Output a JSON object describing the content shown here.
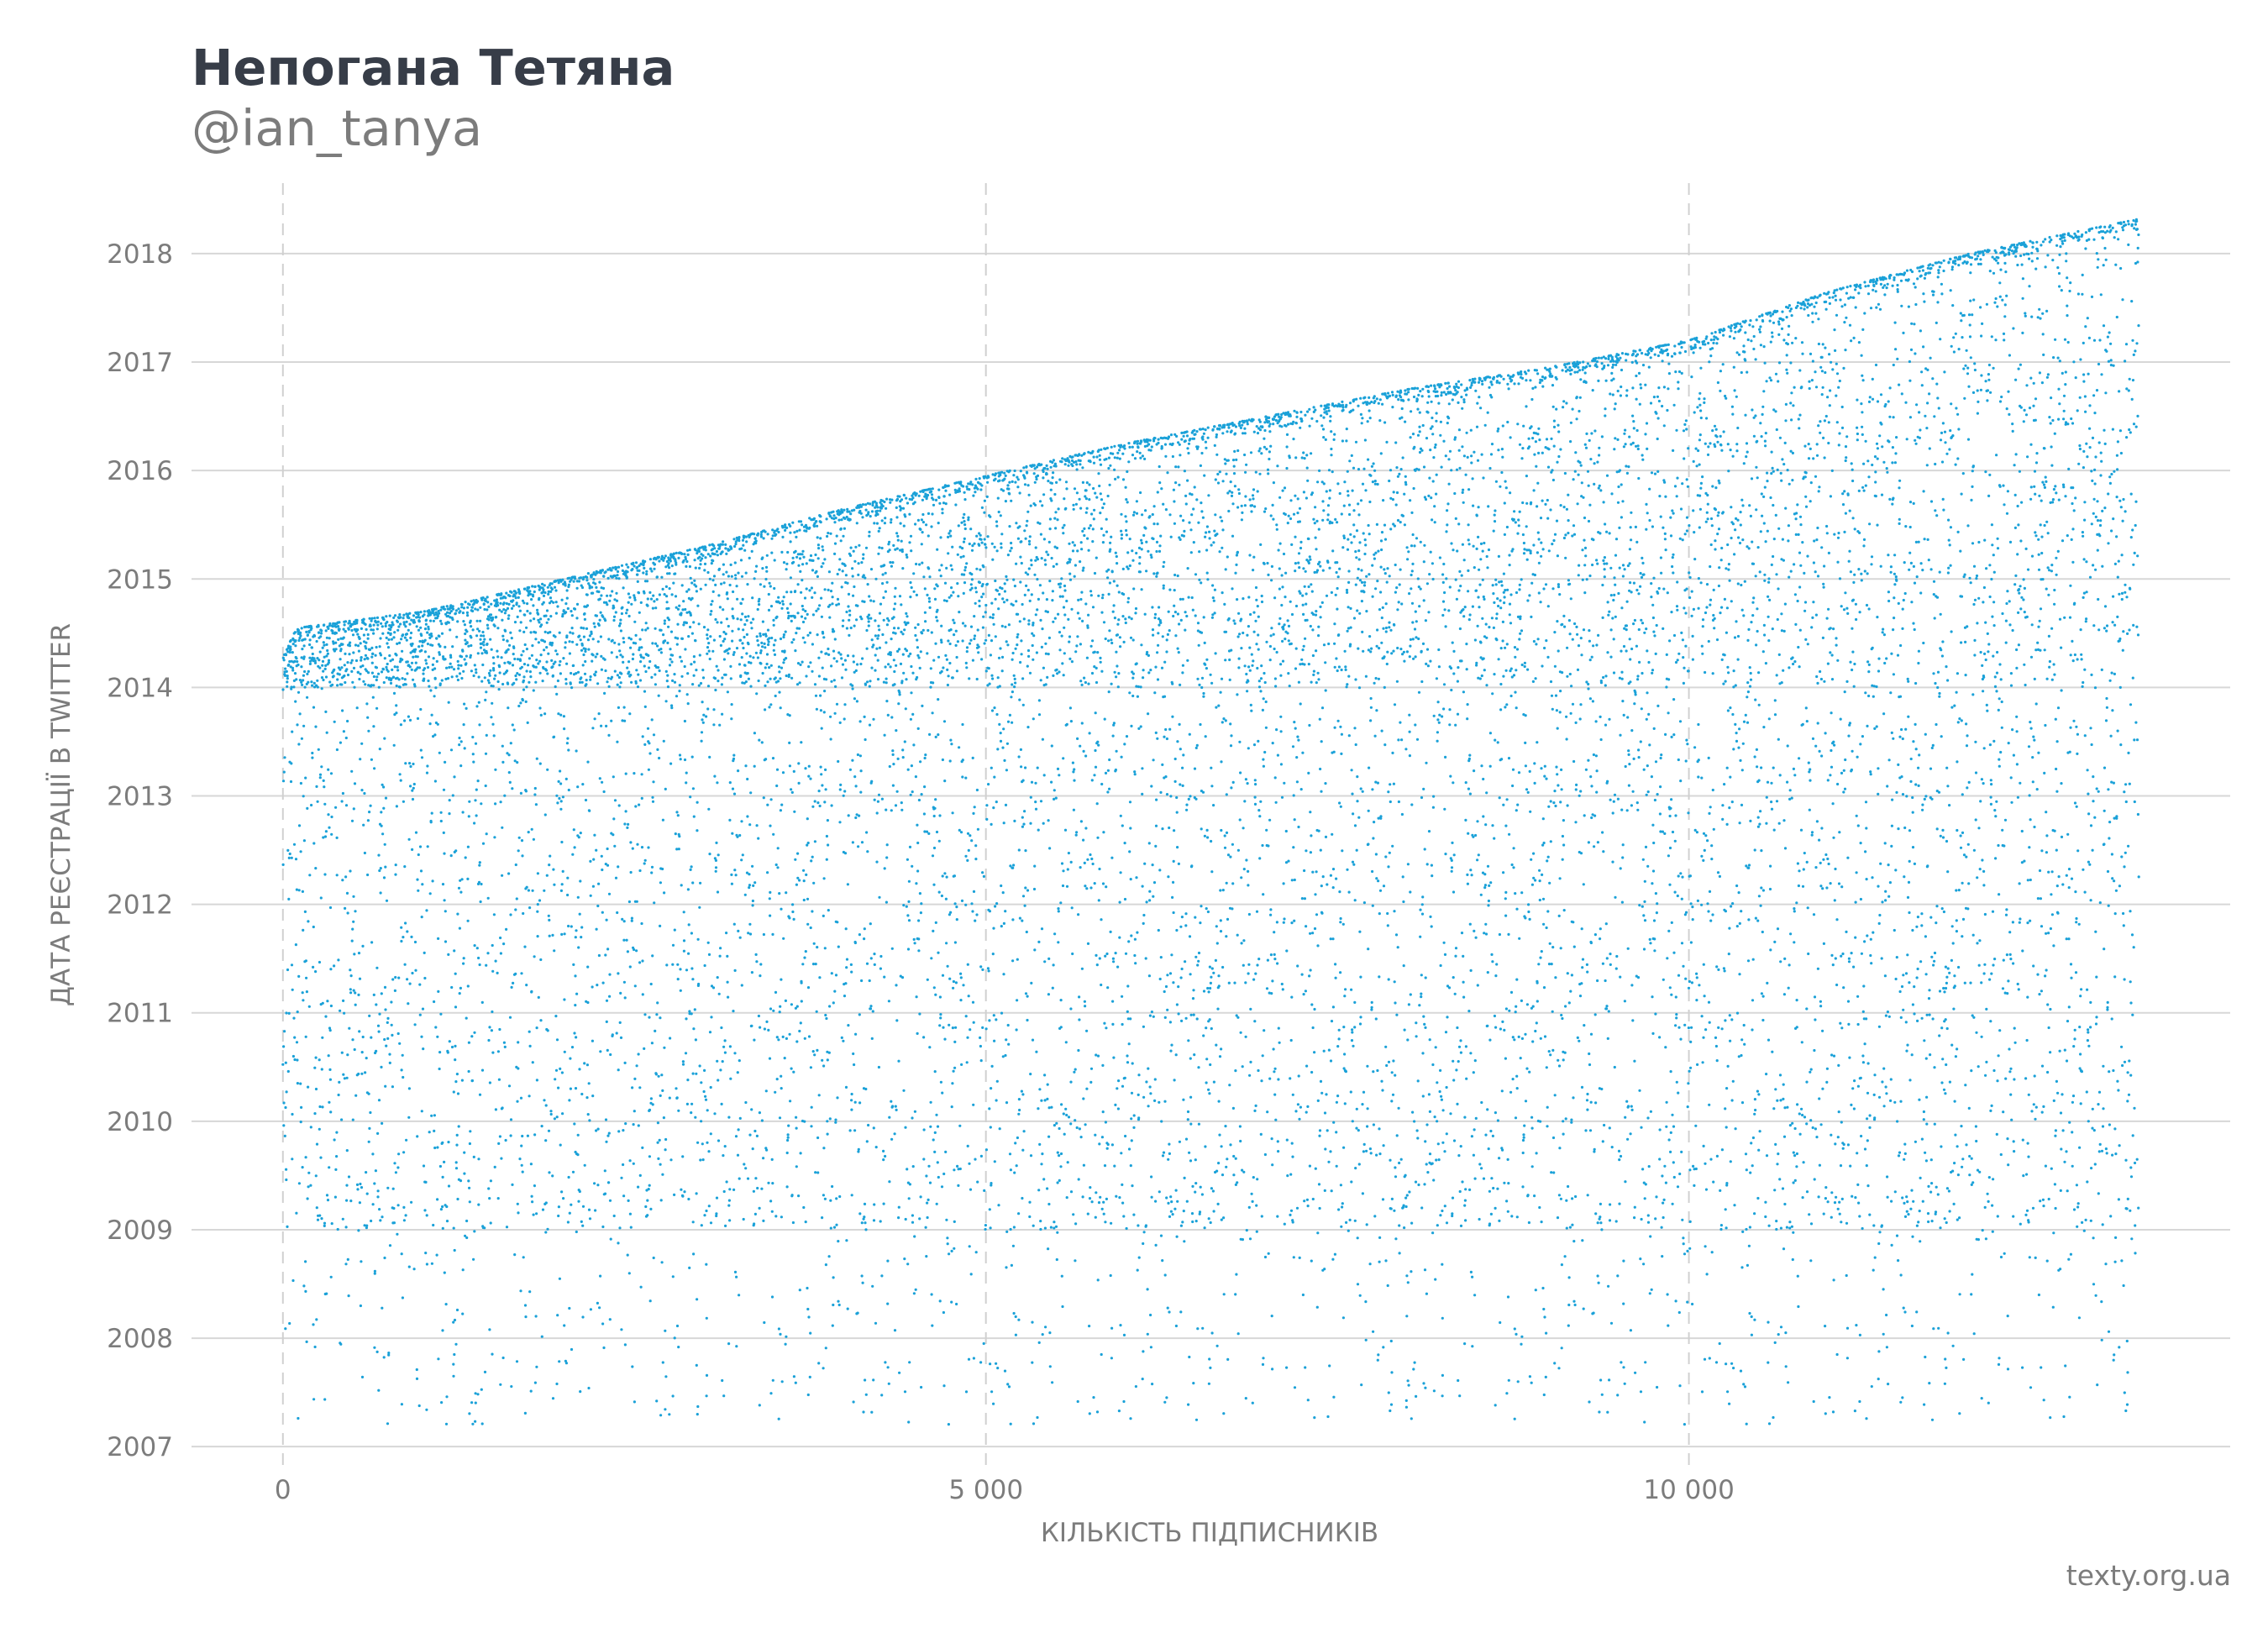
{
  "header": {
    "title": "Непогана Тетяна",
    "subtitle": "@ian_tanya"
  },
  "footer": {
    "source": "texty.org.ua"
  },
  "colors": {
    "points": "#1aa1d8",
    "grid_major": "#d7d7d7",
    "grid_vertical_dashed": "#d0d0d0",
    "text": "#7c7c7c",
    "title": "#373d48"
  },
  "chart_data": {
    "type": "scatter",
    "title": "Непогана Тетяна",
    "subtitle": "@ian_tanya",
    "xlabel": "КІЛЬКІСТЬ ПІДПИСНИКІВ",
    "ylabel": "ДАТА РЕЄСТРАЦІЇ В TWITTER",
    "xlim": [
      -650,
      13850
    ],
    "ylim": [
      2006.8,
      2018.65
    ],
    "x_ticks": [
      0,
      5000,
      10000
    ],
    "x_tick_labels": [
      "0",
      "5 000",
      "10 000"
    ],
    "y_ticks": [
      2007,
      2008,
      2009,
      2010,
      2011,
      2012,
      2013,
      2014,
      2015,
      2016,
      2017,
      2018
    ],
    "y_tick_labels": [
      "2007",
      "2008",
      "2009",
      "2010",
      "2011",
      "2012",
      "2013",
      "2014",
      "2015",
      "2016",
      "2017",
      "2018"
    ],
    "grid": {
      "horizontal": true,
      "vertical_dashed_at_x_ticks": true
    },
    "series": [
      {
        "point_count": 13200,
        "x_range": [
          0,
          13200
        ],
        "upper_envelope": [
          {
            "x": 0,
            "y": 2014.3
          },
          {
            "x": 100,
            "y": 2014.55
          },
          {
            "x": 1000,
            "y": 2014.7
          },
          {
            "x": 2000,
            "y": 2015.0
          },
          {
            "x": 3000,
            "y": 2015.3
          },
          {
            "x": 4000,
            "y": 2015.65
          },
          {
            "x": 5000,
            "y": 2015.95
          },
          {
            "x": 6000,
            "y": 2016.25
          },
          {
            "x": 7000,
            "y": 2016.5
          },
          {
            "x": 8000,
            "y": 2016.75
          },
          {
            "x": 9000,
            "y": 2016.95
          },
          {
            "x": 10000,
            "y": 2017.2
          },
          {
            "x": 11000,
            "y": 2017.65
          },
          {
            "x": 12000,
            "y": 2018.0
          },
          {
            "x": 13200,
            "y": 2018.32
          }
        ],
        "distribution_note": "Most points lie between 2014.0 and the upper envelope; a sparser spread extends down to about 2009, with a few outliers between 2007.2 and 2009."
      }
    ]
  }
}
